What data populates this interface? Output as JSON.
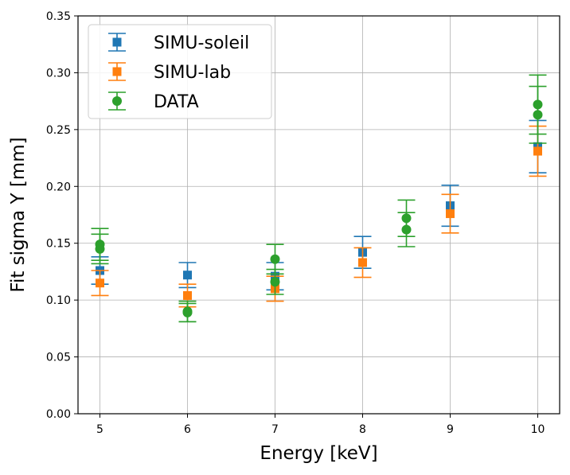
{
  "chart_data": {
    "type": "scatter",
    "title": "",
    "xlabel": "Energy [keV]",
    "ylabel": "Fit sigma Y [mm]",
    "xlim": [
      4.75,
      10.25
    ],
    "ylim": [
      0.0,
      0.35
    ],
    "xticks": [
      5,
      6,
      7,
      8,
      9,
      10
    ],
    "xtick_labels": [
      "5",
      "6",
      "7",
      "8",
      "9",
      "10"
    ],
    "yticks": [
      0.0,
      0.05,
      0.1,
      0.15,
      0.2,
      0.25,
      0.3,
      0.35
    ],
    "ytick_labels": [
      "0.00",
      "0.05",
      "0.10",
      "0.15",
      "0.20",
      "0.25",
      "0.30",
      "0.35"
    ],
    "grid": true,
    "legend_position": "top-left",
    "series": [
      {
        "name": "SIMU-soleil",
        "marker": "square",
        "color": "#1f77b4",
        "points": [
          {
            "x": 5,
            "y": 0.126,
            "err": 0.012
          },
          {
            "x": 6,
            "y": 0.122,
            "err": 0.011
          },
          {
            "x": 7,
            "y": 0.121,
            "err": 0.012
          },
          {
            "x": 8,
            "y": 0.142,
            "err": 0.014
          },
          {
            "x": 9,
            "y": 0.183,
            "err": 0.018
          },
          {
            "x": 10,
            "y": 0.235,
            "err": 0.023
          }
        ]
      },
      {
        "name": "SIMU-lab",
        "marker": "square",
        "color": "#ff7f0e",
        "points": [
          {
            "x": 5,
            "y": 0.115,
            "err": 0.011
          },
          {
            "x": 6,
            "y": 0.104,
            "err": 0.01
          },
          {
            "x": 7,
            "y": 0.11,
            "err": 0.011
          },
          {
            "x": 8,
            "y": 0.133,
            "err": 0.013
          },
          {
            "x": 9,
            "y": 0.176,
            "err": 0.017
          },
          {
            "x": 10,
            "y": 0.231,
            "err": 0.022
          }
        ]
      },
      {
        "name": "DATA",
        "marker": "circle",
        "color": "#2ca02c",
        "points": [
          {
            "x": 5,
            "y": 0.149,
            "err": 0.014
          },
          {
            "x": 5,
            "y": 0.145,
            "err": 0.013
          },
          {
            "x": 6,
            "y": 0.09,
            "err": 0.009
          },
          {
            "x": 6,
            "y": 0.089,
            "err": 0.008
          },
          {
            "x": 7,
            "y": 0.136,
            "err": 0.013
          },
          {
            "x": 7,
            "y": 0.116,
            "err": 0.011
          },
          {
            "x": 8.5,
            "y": 0.172,
            "err": 0.016
          },
          {
            "x": 8.5,
            "y": 0.162,
            "err": 0.015
          },
          {
            "x": 10,
            "y": 0.272,
            "err": 0.026
          },
          {
            "x": 10,
            "y": 0.263,
            "err": 0.025
          }
        ]
      }
    ]
  }
}
